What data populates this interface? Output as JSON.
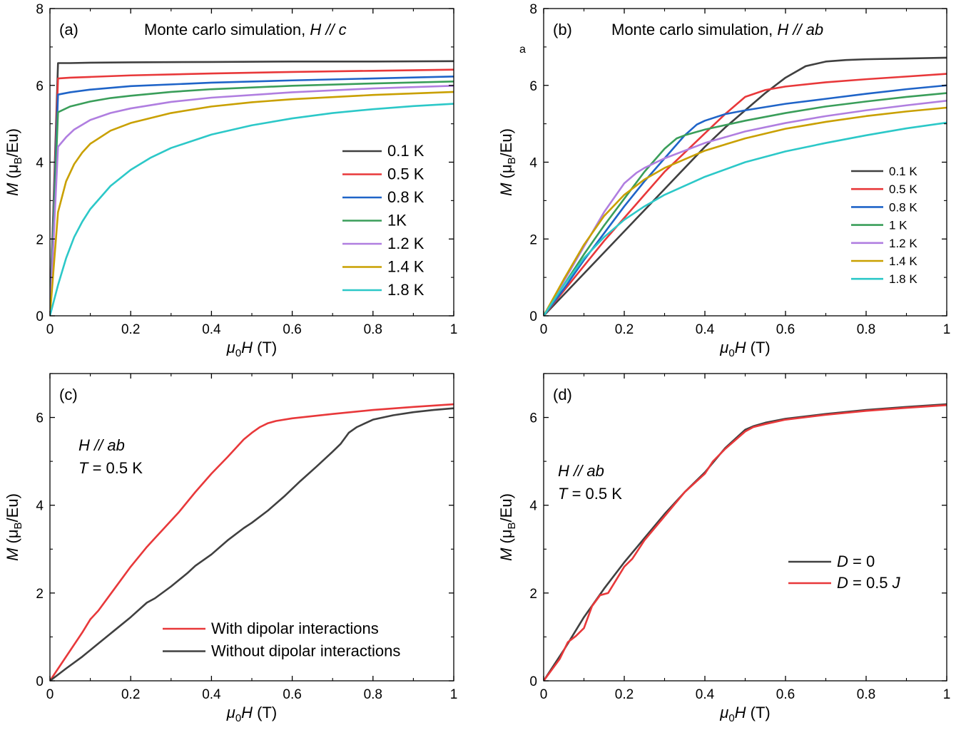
{
  "chart_data": [
    {
      "type": "line",
      "panel_label": "(a)",
      "title": "Monte carlo simulation, ",
      "title_italic": "H // c",
      "xlabel_italic": "μ",
      "xlabel_sub": "0",
      "xlabel_italic2": "H",
      "xlabel_rest": " (T)",
      "ylabel_italic": "M",
      "ylabel_rest": " (μ",
      "ylabel_sub": "B",
      "ylabel_end": "/Eu)",
      "xlim": [
        0,
        1
      ],
      "ylim": [
        0,
        8
      ],
      "xticks": [
        0,
        0.2,
        0.4,
        0.6,
        0.8,
        1
      ],
      "yticks": [
        0,
        2,
        4,
        6,
        8
      ],
      "xtick_labels": [
        "0",
        "0.2",
        "0.4",
        "0.6",
        "0.8",
        "1"
      ],
      "ytick_labels": [
        "0",
        "2",
        "4",
        "6",
        "8"
      ],
      "legend_placement": "center-right",
      "series": [
        {
          "name": "0.1 K",
          "color": "#404040",
          "x": [
            0,
            0.02,
            0.05,
            0.1,
            0.2,
            0.4,
            0.6,
            0.8,
            1.0
          ],
          "y": [
            0,
            6.58,
            6.58,
            6.59,
            6.6,
            6.61,
            6.62,
            6.62,
            6.63
          ]
        },
        {
          "name": "0.5 K",
          "color": "#e8383a",
          "x": [
            0,
            0.02,
            0.05,
            0.1,
            0.2,
            0.4,
            0.6,
            0.8,
            1.0
          ],
          "y": [
            0,
            6.18,
            6.2,
            6.22,
            6.26,
            6.31,
            6.35,
            6.38,
            6.41
          ]
        },
        {
          "name": "0.8 K",
          "color": "#1f64c8",
          "x": [
            0,
            0.02,
            0.05,
            0.1,
            0.2,
            0.4,
            0.6,
            0.8,
            1.0
          ],
          "y": [
            0,
            5.76,
            5.82,
            5.89,
            5.98,
            6.07,
            6.13,
            6.18,
            6.23
          ]
        },
        {
          "name": "1K",
          "color": "#3a9e5a",
          "x": [
            0,
            0.02,
            0.05,
            0.1,
            0.15,
            0.2,
            0.3,
            0.4,
            0.6,
            0.8,
            1.0
          ],
          "y": [
            0,
            5.3,
            5.45,
            5.58,
            5.67,
            5.73,
            5.83,
            5.9,
            5.99,
            6.05,
            6.1
          ]
        },
        {
          "name": "1.2 K",
          "color": "#b07ee0",
          "x": [
            0,
            0.02,
            0.04,
            0.06,
            0.1,
            0.15,
            0.2,
            0.3,
            0.4,
            0.6,
            0.8,
            1.0
          ],
          "y": [
            0,
            4.4,
            4.65,
            4.85,
            5.1,
            5.28,
            5.4,
            5.57,
            5.68,
            5.82,
            5.92,
            5.99
          ]
        },
        {
          "name": "1.4 K",
          "color": "#c9a000",
          "x": [
            0,
            0.02,
            0.04,
            0.06,
            0.08,
            0.1,
            0.15,
            0.2,
            0.3,
            0.4,
            0.5,
            0.6,
            0.8,
            1.0
          ],
          "y": [
            0,
            2.7,
            3.5,
            3.95,
            4.25,
            4.48,
            4.82,
            5.02,
            5.28,
            5.45,
            5.56,
            5.64,
            5.75,
            5.83
          ]
        },
        {
          "name": "1.8 K",
          "color": "#2cc8c8",
          "x": [
            0,
            0.02,
            0.04,
            0.06,
            0.08,
            0.1,
            0.15,
            0.2,
            0.25,
            0.3,
            0.4,
            0.5,
            0.6,
            0.7,
            0.8,
            0.9,
            1.0
          ],
          "y": [
            0,
            0.8,
            1.5,
            2.05,
            2.45,
            2.78,
            3.38,
            3.8,
            4.12,
            4.37,
            4.72,
            4.96,
            5.14,
            5.28,
            5.38,
            5.46,
            5.52
          ]
        }
      ]
    },
    {
      "type": "line",
      "panel_label": "(b)",
      "title": "Monte carlo simulation, ",
      "title_italic": "H // ab",
      "stray_text": "a",
      "xlabel_italic": "μ",
      "xlabel_sub": "0",
      "xlabel_italic2": "H",
      "xlabel_rest": " (T)",
      "ylabel_italic": "M",
      "ylabel_rest": " (μ",
      "ylabel_sub": "B",
      "ylabel_end": "/Eu)",
      "xlim": [
        0,
        1
      ],
      "ylim": [
        0,
        8
      ],
      "xticks": [
        0,
        0.2,
        0.4,
        0.6,
        0.8,
        1
      ],
      "yticks": [
        0,
        2,
        4,
        6,
        8
      ],
      "xtick_labels": [
        "0",
        "0.2",
        "0.4",
        "0.6",
        "0.8",
        "1"
      ],
      "ytick_labels": [
        "0",
        "2",
        "4",
        "6",
        "8"
      ],
      "legend_placement": "center-right",
      "series": [
        {
          "name": "0.1 K",
          "color": "#404040",
          "x": [
            0,
            0.05,
            0.1,
            0.15,
            0.2,
            0.25,
            0.3,
            0.35,
            0.4,
            0.45,
            0.5,
            0.55,
            0.6,
            0.65,
            0.7,
            0.75,
            0.8,
            0.9,
            1.0
          ],
          "y": [
            0,
            0.55,
            1.1,
            1.65,
            2.2,
            2.75,
            3.3,
            3.85,
            4.4,
            4.9,
            5.35,
            5.8,
            6.2,
            6.5,
            6.62,
            6.66,
            6.68,
            6.7,
            6.72
          ]
        },
        {
          "name": "0.5 K",
          "color": "#e8383a",
          "x": [
            0,
            0.05,
            0.1,
            0.15,
            0.2,
            0.25,
            0.3,
            0.35,
            0.4,
            0.45,
            0.5,
            0.55,
            0.6,
            0.7,
            0.8,
            0.9,
            1.0
          ],
          "y": [
            0,
            0.65,
            1.3,
            1.95,
            2.55,
            3.15,
            3.75,
            4.25,
            4.75,
            5.25,
            5.7,
            5.88,
            5.97,
            6.08,
            6.16,
            6.23,
            6.3
          ]
        },
        {
          "name": "0.8 K",
          "color": "#1f64c8",
          "x": [
            0,
            0.05,
            0.1,
            0.15,
            0.2,
            0.25,
            0.3,
            0.35,
            0.38,
            0.4,
            0.45,
            0.5,
            0.6,
            0.7,
            0.8,
            0.9,
            1.0
          ],
          "y": [
            0,
            0.7,
            1.45,
            2.15,
            2.85,
            3.5,
            4.1,
            4.7,
            4.98,
            5.08,
            5.25,
            5.35,
            5.52,
            5.65,
            5.78,
            5.9,
            6.0
          ]
        },
        {
          "name": "1 K",
          "color": "#3a9e5a",
          "x": [
            0,
            0.05,
            0.1,
            0.15,
            0.2,
            0.25,
            0.3,
            0.33,
            0.35,
            0.4,
            0.5,
            0.6,
            0.7,
            0.8,
            0.9,
            1.0
          ],
          "y": [
            0,
            0.8,
            1.6,
            2.35,
            3.05,
            3.75,
            4.35,
            4.62,
            4.7,
            4.85,
            5.08,
            5.28,
            5.45,
            5.58,
            5.7,
            5.8
          ]
        },
        {
          "name": "1.2 K",
          "color": "#b07ee0",
          "x": [
            0,
            0.05,
            0.1,
            0.15,
            0.2,
            0.23,
            0.25,
            0.3,
            0.4,
            0.5,
            0.6,
            0.7,
            0.8,
            0.9,
            1.0
          ],
          "y": [
            0,
            0.9,
            1.8,
            2.7,
            3.45,
            3.72,
            3.85,
            4.1,
            4.5,
            4.8,
            5.02,
            5.2,
            5.35,
            5.48,
            5.6
          ]
        },
        {
          "name": "1.4 K",
          "color": "#c9a000",
          "x": [
            0,
            0.05,
            0.1,
            0.15,
            0.2,
            0.25,
            0.3,
            0.4,
            0.5,
            0.6,
            0.7,
            0.8,
            0.9,
            1.0
          ],
          "y": [
            0,
            0.95,
            1.85,
            2.6,
            3.15,
            3.55,
            3.85,
            4.3,
            4.62,
            4.87,
            5.05,
            5.2,
            5.32,
            5.42
          ]
        },
        {
          "name": "1.8 K",
          "color": "#2cc8c8",
          "x": [
            0,
            0.05,
            0.1,
            0.15,
            0.2,
            0.25,
            0.3,
            0.4,
            0.5,
            0.6,
            0.7,
            0.8,
            0.9,
            1.0
          ],
          "y": [
            0,
            0.8,
            1.5,
            2.05,
            2.5,
            2.85,
            3.15,
            3.62,
            4.0,
            4.28,
            4.5,
            4.7,
            4.88,
            5.03
          ]
        }
      ]
    },
    {
      "type": "line",
      "panel_label": "(c)",
      "annotation_line1_italic": "H // ab",
      "annotation_line2_italic": "T",
      "annotation_line2_rest": " = 0.5 K",
      "xlabel_italic": "μ",
      "xlabel_sub": "0",
      "xlabel_italic2": "H",
      "xlabel_rest": " (T)",
      "ylabel_italic": "M",
      "ylabel_rest": " (μ",
      "ylabel_sub": "B",
      "ylabel_end": "/Eu)",
      "xlim": [
        0,
        1
      ],
      "ylim": [
        0,
        7
      ],
      "xticks": [
        0,
        0.2,
        0.4,
        0.6,
        0.8,
        1
      ],
      "yticks": [
        0,
        2,
        4,
        6
      ],
      "xtick_labels": [
        "0",
        "0.2",
        "0.4",
        "0.6",
        "0.8",
        "1"
      ],
      "ytick_labels": [
        "0",
        "2",
        "4",
        "6"
      ],
      "legend_placement": "bottom-center",
      "series": [
        {
          "name": "With dipolar interactions",
          "color": "#e8383a",
          "x": [
            0,
            0.04,
            0.08,
            0.1,
            0.12,
            0.16,
            0.2,
            0.24,
            0.26,
            0.28,
            0.32,
            0.36,
            0.4,
            0.44,
            0.48,
            0.5,
            0.52,
            0.54,
            0.56,
            0.6,
            0.7,
            0.8,
            0.9,
            1.0
          ],
          "y": [
            0,
            0.55,
            1.1,
            1.4,
            1.6,
            2.1,
            2.6,
            3.05,
            3.25,
            3.45,
            3.85,
            4.3,
            4.72,
            5.1,
            5.5,
            5.65,
            5.78,
            5.87,
            5.92,
            5.98,
            6.08,
            6.17,
            6.24,
            6.3
          ]
        },
        {
          "name": "Without dipolar interactions",
          "color": "#404040",
          "x": [
            0,
            0.04,
            0.08,
            0.12,
            0.16,
            0.2,
            0.24,
            0.26,
            0.3,
            0.34,
            0.36,
            0.4,
            0.44,
            0.48,
            0.5,
            0.54,
            0.58,
            0.62,
            0.66,
            0.7,
            0.72,
            0.74,
            0.76,
            0.8,
            0.85,
            0.9,
            0.95,
            1.0
          ],
          "y": [
            0,
            0.28,
            0.55,
            0.85,
            1.15,
            1.45,
            1.78,
            1.88,
            2.15,
            2.45,
            2.62,
            2.88,
            3.2,
            3.48,
            3.6,
            3.88,
            4.2,
            4.55,
            4.88,
            5.22,
            5.4,
            5.65,
            5.78,
            5.95,
            6.05,
            6.12,
            6.17,
            6.21
          ]
        }
      ]
    },
    {
      "type": "line",
      "panel_label": "(d)",
      "annotation_line1_italic": "H // ab",
      "annotation_line2_italic": "T",
      "annotation_line2_rest": " = 0.5 K",
      "xlabel_italic": "μ",
      "xlabel_sub": "0",
      "xlabel_italic2": "H",
      "xlabel_rest": " (T)",
      "ylabel_italic": "M",
      "ylabel_rest": " (μ",
      "ylabel_sub": "B",
      "ylabel_end": "/Eu)",
      "xlim": [
        0,
        1
      ],
      "ylim": [
        0,
        7
      ],
      "xticks": [
        0,
        0.2,
        0.4,
        0.6,
        0.8,
        1
      ],
      "yticks": [
        0,
        2,
        4,
        6
      ],
      "xtick_labels": [
        "0",
        "0.2",
        "0.4",
        "0.6",
        "0.8",
        "1"
      ],
      "ytick_labels": [
        "0",
        "2",
        "4",
        "6"
      ],
      "legend_placement": "bottom-right",
      "series": [
        {
          "name_italic": "D",
          "name_rest": " = 0",
          "color": "#404040",
          "x": [
            0,
            0.05,
            0.1,
            0.15,
            0.2,
            0.25,
            0.3,
            0.35,
            0.4,
            0.45,
            0.5,
            0.52,
            0.55,
            0.6,
            0.7,
            0.8,
            0.9,
            1.0
          ],
          "y": [
            0,
            0.7,
            1.45,
            2.1,
            2.7,
            3.25,
            3.8,
            4.3,
            4.75,
            5.3,
            5.72,
            5.8,
            5.88,
            5.97,
            6.08,
            6.17,
            6.24,
            6.3
          ]
        },
        {
          "name_italic": "D",
          "name_rest": " = 0.5 ",
          "name_italic2": "J",
          "color": "#e8383a",
          "x": [
            0,
            0.02,
            0.04,
            0.06,
            0.08,
            0.1,
            0.12,
            0.14,
            0.16,
            0.18,
            0.2,
            0.22,
            0.25,
            0.3,
            0.35,
            0.4,
            0.42,
            0.45,
            0.5,
            0.52,
            0.55,
            0.6,
            0.7,
            0.8,
            0.9,
            1.0
          ],
          "y": [
            0,
            0.25,
            0.5,
            0.88,
            1.02,
            1.2,
            1.7,
            1.95,
            2.0,
            2.3,
            2.6,
            2.78,
            3.2,
            3.75,
            4.3,
            4.72,
            5.0,
            5.28,
            5.68,
            5.78,
            5.85,
            5.95,
            6.06,
            6.15,
            6.22,
            6.28
          ]
        }
      ]
    }
  ]
}
